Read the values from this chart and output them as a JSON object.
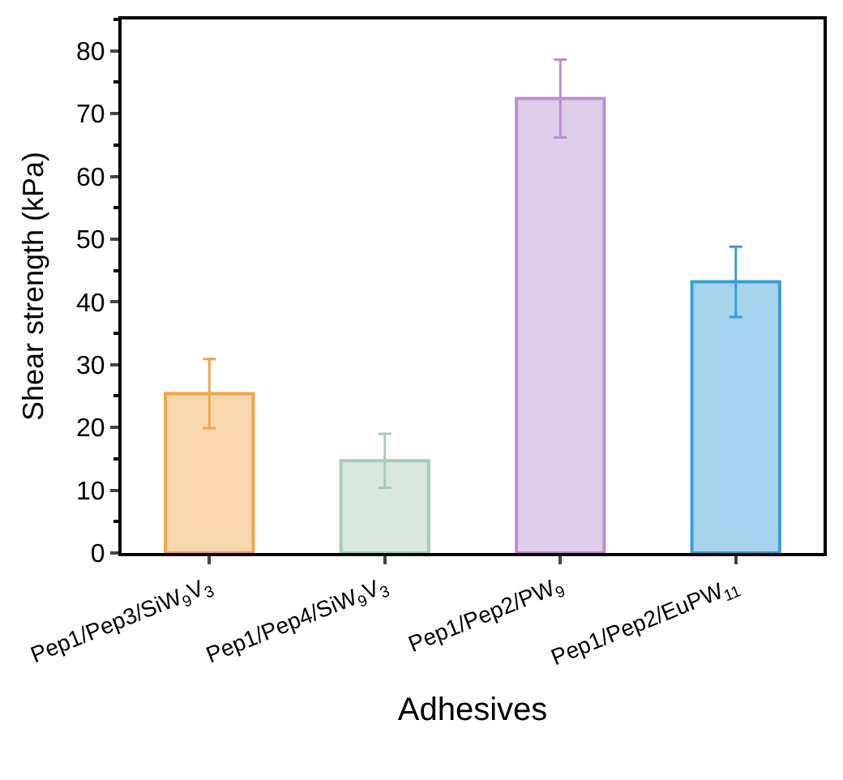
{
  "chart_data": {
    "type": "bar",
    "xlabel": "Adhesives",
    "ylabel": "Shear strength (kPa)",
    "categories": [
      "Pep1/Pep3/SiW$_{9}$V$_{3}$",
      "Pep1/Pep4/SiW$_{9}$V$_{3}$",
      "Pep1/Pep2/PW$_{9}$",
      "Pep1/Pep2/EuPW$_{11}$"
    ],
    "values": [
      25.4,
      14.7,
      72.4,
      43.2
    ],
    "errors": [
      5.5,
      4.3,
      6.2,
      5.6
    ],
    "colors": [
      "#efa64a",
      "#a9cbb7",
      "#b98fd0",
      "#3a9fd6"
    ],
    "ylim": [
      0,
      85
    ],
    "yticks": [
      0,
      10,
      20,
      30,
      40,
      50,
      60,
      70,
      80
    ],
    "legend": false
  }
}
